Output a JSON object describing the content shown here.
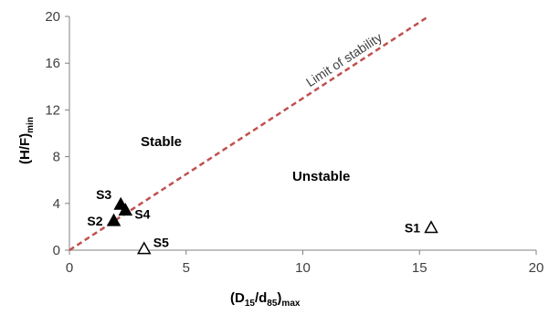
{
  "chart_data": {
    "type": "scatter",
    "xlim": [
      0,
      20
    ],
    "ylim": [
      0,
      20
    ],
    "x_ticks": [
      "0",
      "5",
      "10",
      "15",
      "20"
    ],
    "y_ticks": [
      "0",
      "4",
      "8",
      "12",
      "16",
      "20"
    ],
    "xlabel": {
      "main": "(D",
      "s1": "15",
      "mid": "/d",
      "s2": "85",
      "close": ")",
      "s3": "max"
    },
    "ylabel": {
      "main": "(H/F)",
      "sub": "min"
    },
    "grid": false,
    "stability_line": {
      "label": "Limit of stability",
      "slope": 1.3,
      "color": "#C0504D"
    },
    "regions": {
      "stable": "Stable",
      "unstable": "Unstable"
    },
    "points": [
      {
        "label": "S1",
        "x": 15.5,
        "y": 1.9,
        "filled": false,
        "label_pos": "left"
      },
      {
        "label": "S2",
        "x": 1.9,
        "y": 2.5,
        "filled": true,
        "label_pos": "left"
      },
      {
        "label": "S3",
        "x": 2.2,
        "y": 3.9,
        "filled": true,
        "label_pos": "upleft"
      },
      {
        "label": "S4",
        "x": 2.4,
        "y": 3.4,
        "filled": true,
        "label_pos": "right"
      },
      {
        "label": "S5",
        "x": 3.2,
        "y": 0.1,
        "filled": false,
        "label_pos": "upright"
      }
    ]
  }
}
